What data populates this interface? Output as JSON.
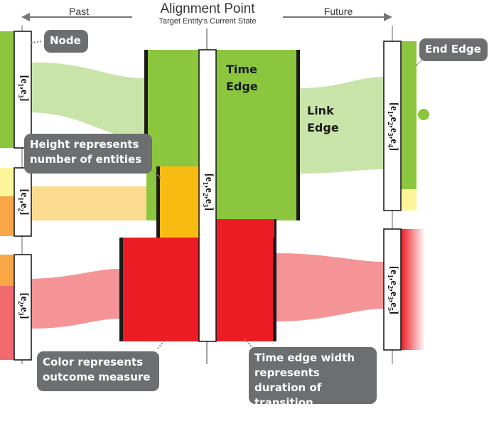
{
  "header": {
    "past_label": "Past",
    "future_label": "Future",
    "alignment_title": "Alignment Point",
    "alignment_subtitle": "Target Entity's Current State"
  },
  "callouts": {
    "node": "Node",
    "end_edge": "End Edge",
    "height": "Height represents number of entities",
    "color": "Color represents outcome measure",
    "time_width": "Time edge width represents duration of transition"
  },
  "edge_labels": {
    "time_edge": "Time Edge",
    "link_edge": "Link Edge"
  },
  "nodes": {
    "past_1": "[e1,e3]",
    "past_2": "[e1,e2]",
    "past_3": "[e2,e3]",
    "center": "[e1,e2,e3]",
    "future_1": "[e1,e2,e3,e4]",
    "future_2": "[e1,e2,e3,e5]"
  },
  "colors": {
    "green": "#8cc63f",
    "green_light": "#c9e4a8",
    "orange": "#f9bb12",
    "orange_light": "#fadb8f",
    "red": "#ec1c24",
    "red_light": "#f49497",
    "yellow_light": "#fdf59a",
    "callout_gray": "#6d6e70"
  }
}
